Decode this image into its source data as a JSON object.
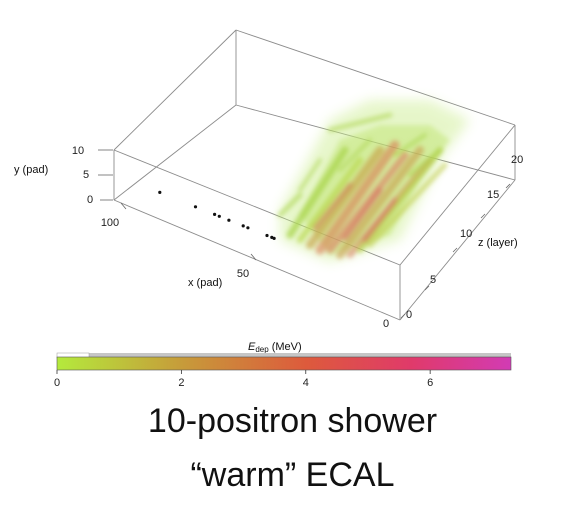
{
  "chart_data": {
    "type": "scatter",
    "description_3d": "3D energy-deposit shower in ECAL",
    "axes": {
      "x": {
        "label": "x (pad)",
        "ticks": [
          50,
          100
        ],
        "range": [
          0,
          120
        ]
      },
      "y": {
        "label": "y (pad)",
        "ticks": [
          0,
          5,
          10
        ],
        "range": [
          0,
          10
        ]
      },
      "z": {
        "label": "z (layer)",
        "ticks": [
          0,
          5,
          10,
          15,
          20
        ],
        "range": [
          0,
          22
        ]
      }
    },
    "colorbar": {
      "label_main": "E",
      "label_sub": "dep",
      "label_unit": "(MeV)",
      "ticks": [
        0,
        2,
        4,
        6
      ],
      "range": [
        0,
        7.3
      ],
      "colors": [
        "#b4ea3c",
        "#c79a3a",
        "#dd5a3c",
        "#e03a6a",
        "#d23bb4"
      ]
    },
    "entry_points": [
      {
        "x": 90,
        "z": 0
      },
      {
        "x": 82,
        "z": 0
      },
      {
        "x": 80,
        "z": 0
      },
      {
        "x": 76,
        "z": 0
      },
      {
        "x": 70,
        "z": 0
      },
      {
        "x": 68,
        "z": 0
      },
      {
        "x": 60,
        "z": 0
      },
      {
        "x": 58,
        "z": 0
      },
      {
        "x": 57,
        "z": 0
      },
      {
        "x": 105,
        "z": 0
      }
    ]
  },
  "caption": {
    "line1": "10-positron shower",
    "line2": "“warm” ECAL"
  }
}
